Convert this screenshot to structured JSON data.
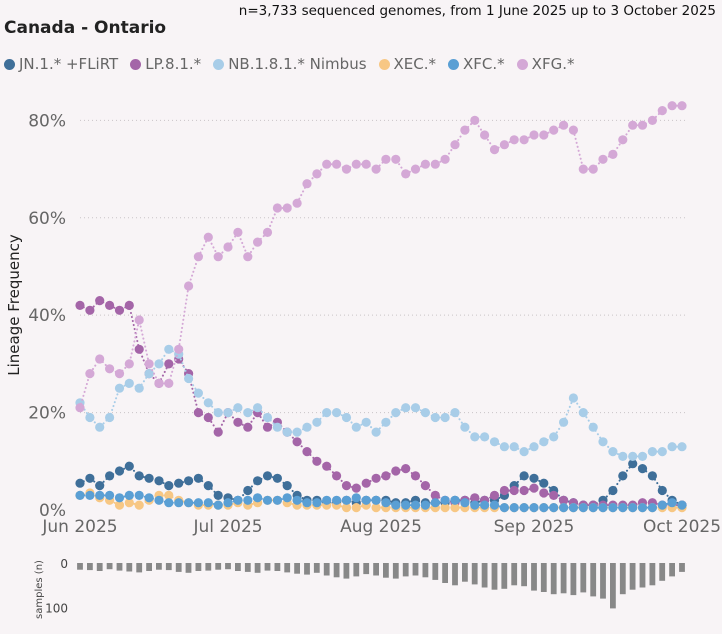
{
  "chart_data": [
    {
      "type": "line",
      "title": "Canada - Ontario",
      "subtitle": "n=3,733 sequenced genomes, from 1 June 2025 up to 3 October 2025",
      "xlabel": "",
      "ylabel": "Lineage Frequency",
      "ylim": [
        0,
        0.85
      ],
      "yticks": [
        0,
        0.2,
        0.4,
        0.6,
        0.8
      ],
      "ytick_labels": [
        "0%",
        "20%",
        "40%",
        "60%",
        "80%"
      ],
      "xticks": [
        0,
        30,
        61,
        92,
        122
      ],
      "xtick_labels": [
        "Jun 2025",
        "Jul 2025",
        "Aug 2025",
        "Sep 2025",
        "Oct 2025"
      ],
      "x_unit": "days since 2025-06-01",
      "series": [
        {
          "name": "JN.1.* +FLiRT",
          "color": "#3f6f99",
          "x": [
            0,
            2,
            4,
            6,
            8,
            10,
            12,
            14,
            16,
            18,
            20,
            22,
            24,
            26,
            28,
            30,
            32,
            34,
            36,
            38,
            40,
            42,
            44,
            46,
            48,
            50,
            52,
            54,
            56,
            58,
            60,
            62,
            64,
            66,
            68,
            70,
            72,
            74,
            76,
            78,
            80,
            82,
            84,
            86,
            88,
            90,
            92,
            94,
            96,
            98,
            100,
            102,
            104,
            106,
            108,
            110,
            112,
            114,
            116,
            118,
            120,
            122
          ],
          "y": [
            0.055,
            0.065,
            0.05,
            0.07,
            0.08,
            0.09,
            0.07,
            0.065,
            0.06,
            0.05,
            0.055,
            0.06,
            0.065,
            0.05,
            0.03,
            0.025,
            0.02,
            0.04,
            0.06,
            0.07,
            0.065,
            0.05,
            0.03,
            0.02,
            0.02,
            0.015,
            0.015,
            0.02,
            0.015,
            0.02,
            0.02,
            0.02,
            0.015,
            0.015,
            0.02,
            0.015,
            0.015,
            0.015,
            0.02,
            0.02,
            0.015,
            0.02,
            0.02,
            0.03,
            0.05,
            0.07,
            0.065,
            0.055,
            0.04,
            0.02,
            0.015,
            0.01,
            0.01,
            0.02,
            0.04,
            0.07,
            0.095,
            0.085,
            0.07,
            0.04,
            0.02,
            0.01
          ]
        },
        {
          "name": "LP.8.1.*",
          "color": "#a465a8",
          "x": [
            0,
            2,
            4,
            6,
            8,
            10,
            12,
            14,
            16,
            18,
            20,
            22,
            24,
            26,
            28,
            30,
            32,
            34,
            36,
            38,
            40,
            42,
            44,
            46,
            48,
            50,
            52,
            54,
            56,
            58,
            60,
            62,
            64,
            66,
            68,
            70,
            72,
            74,
            76,
            78,
            80,
            82,
            84,
            86,
            88,
            90,
            92,
            94,
            96,
            98,
            100,
            102,
            104,
            106,
            108,
            110,
            112,
            114,
            116,
            118,
            120,
            122
          ],
          "y": [
            0.42,
            0.41,
            0.43,
            0.42,
            0.41,
            0.42,
            0.33,
            0.28,
            0.26,
            0.3,
            0.31,
            0.28,
            0.2,
            0.19,
            0.16,
            0.2,
            0.18,
            0.17,
            0.2,
            0.17,
            0.18,
            0.16,
            0.14,
            0.12,
            0.1,
            0.09,
            0.07,
            0.05,
            0.045,
            0.055,
            0.065,
            0.07,
            0.08,
            0.085,
            0.07,
            0.05,
            0.03,
            0.02,
            0.015,
            0.02,
            0.025,
            0.02,
            0.03,
            0.04,
            0.04,
            0.04,
            0.045,
            0.035,
            0.03,
            0.02,
            0.015,
            0.01,
            0.01,
            0.01,
            0.01,
            0.01,
            0.01,
            0.015,
            0.015,
            0.01,
            0.01,
            0.01
          ]
        },
        {
          "name": "NB.1.8.1.* Nimbus",
          "color": "#a8cde8",
          "x": [
            0,
            2,
            4,
            6,
            8,
            10,
            12,
            14,
            16,
            18,
            20,
            22,
            24,
            26,
            28,
            30,
            32,
            34,
            36,
            38,
            40,
            42,
            44,
            46,
            48,
            50,
            52,
            54,
            56,
            58,
            60,
            62,
            64,
            66,
            68,
            70,
            72,
            74,
            76,
            78,
            80,
            82,
            84,
            86,
            88,
            90,
            92,
            94,
            96,
            98,
            100,
            102,
            104,
            106,
            108,
            110,
            112,
            114,
            116,
            118,
            120,
            122
          ],
          "y": [
            0.22,
            0.19,
            0.17,
            0.19,
            0.25,
            0.26,
            0.25,
            0.28,
            0.3,
            0.33,
            0.32,
            0.27,
            0.24,
            0.22,
            0.2,
            0.2,
            0.21,
            0.2,
            0.21,
            0.19,
            0.17,
            0.16,
            0.16,
            0.17,
            0.18,
            0.2,
            0.2,
            0.19,
            0.17,
            0.18,
            0.16,
            0.18,
            0.2,
            0.21,
            0.21,
            0.2,
            0.19,
            0.19,
            0.2,
            0.17,
            0.15,
            0.15,
            0.14,
            0.13,
            0.13,
            0.12,
            0.13,
            0.14,
            0.15,
            0.18,
            0.23,
            0.2,
            0.17,
            0.14,
            0.12,
            0.11,
            0.11,
            0.11,
            0.12,
            0.12,
            0.13,
            0.13
          ]
        },
        {
          "name": "XEC.*",
          "color": "#f7c784",
          "x": [
            0,
            2,
            4,
            6,
            8,
            10,
            12,
            14,
            16,
            18,
            20,
            22,
            24,
            26,
            28,
            30,
            32,
            34,
            36,
            38,
            40,
            42,
            44,
            46,
            48,
            50,
            52,
            54,
            56,
            58,
            60,
            62,
            64,
            66,
            68,
            70,
            72,
            74,
            76,
            78,
            80,
            82,
            84,
            86,
            88,
            90,
            92,
            94,
            96,
            98,
            100,
            102,
            104,
            106,
            108,
            110,
            112,
            114,
            116,
            118,
            120,
            122
          ],
          "y": [
            0.03,
            0.035,
            0.025,
            0.02,
            0.01,
            0.015,
            0.01,
            0.02,
            0.03,
            0.03,
            0.02,
            0.015,
            0.01,
            0.01,
            0.01,
            0.01,
            0.015,
            0.01,
            0.015,
            0.02,
            0.02,
            0.015,
            0.01,
            0.01,
            0.01,
            0.01,
            0.01,
            0.005,
            0.005,
            0.01,
            0.005,
            0.005,
            0.005,
            0.005,
            0.005,
            0.005,
            0.005,
            0.005,
            0.005,
            0.005,
            0.005,
            0.005,
            0.005,
            0.005,
            0.005,
            0.005,
            0.005,
            0.005,
            0.005,
            0.005,
            0.005,
            0.005,
            0.005,
            0.005,
            0.005,
            0.005,
            0.005,
            0.005,
            0.005,
            0.005,
            0.005,
            0.005
          ]
        },
        {
          "name": "XFC.*",
          "color": "#5a9fd4",
          "x": [
            0,
            2,
            4,
            6,
            8,
            10,
            12,
            14,
            16,
            18,
            20,
            22,
            24,
            26,
            28,
            30,
            32,
            34,
            36,
            38,
            40,
            42,
            44,
            46,
            48,
            50,
            52,
            54,
            56,
            58,
            60,
            62,
            64,
            66,
            68,
            70,
            72,
            74,
            76,
            78,
            80,
            82,
            84,
            86,
            88,
            90,
            92,
            94,
            96,
            98,
            100,
            102,
            104,
            106,
            108,
            110,
            112,
            114,
            116,
            118,
            120,
            122
          ],
          "y": [
            0.03,
            0.03,
            0.03,
            0.03,
            0.025,
            0.03,
            0.03,
            0.025,
            0.02,
            0.015,
            0.015,
            0.015,
            0.015,
            0.015,
            0.01,
            0.015,
            0.02,
            0.02,
            0.025,
            0.02,
            0.02,
            0.025,
            0.02,
            0.015,
            0.015,
            0.02,
            0.02,
            0.02,
            0.025,
            0.02,
            0.02,
            0.015,
            0.01,
            0.01,
            0.01,
            0.01,
            0.015,
            0.02,
            0.02,
            0.015,
            0.01,
            0.01,
            0.01,
            0.005,
            0.005,
            0.005,
            0.005,
            0.005,
            0.005,
            0.005,
            0.005,
            0.005,
            0.005,
            0.005,
            0.005,
            0.005,
            0.005,
            0.005,
            0.005,
            0.01,
            0.015,
            0.01
          ]
        },
        {
          "name": "XFG.*",
          "color": "#d4a8d6",
          "x": [
            0,
            2,
            4,
            6,
            8,
            10,
            12,
            14,
            16,
            18,
            20,
            22,
            24,
            26,
            28,
            30,
            32,
            34,
            36,
            38,
            40,
            42,
            44,
            46,
            48,
            50,
            52,
            54,
            56,
            58,
            60,
            62,
            64,
            66,
            68,
            70,
            72,
            74,
            76,
            78,
            80,
            82,
            84,
            86,
            88,
            90,
            92,
            94,
            96,
            98,
            100,
            102,
            104,
            106,
            108,
            110,
            112,
            114,
            116,
            118,
            120,
            122
          ],
          "y": [
            0.21,
            0.28,
            0.31,
            0.29,
            0.28,
            0.3,
            0.39,
            0.3,
            0.26,
            0.26,
            0.33,
            0.46,
            0.52,
            0.56,
            0.52,
            0.54,
            0.57,
            0.52,
            0.55,
            0.57,
            0.62,
            0.62,
            0.63,
            0.67,
            0.69,
            0.71,
            0.71,
            0.7,
            0.71,
            0.71,
            0.7,
            0.72,
            0.72,
            0.69,
            0.7,
            0.71,
            0.71,
            0.72,
            0.75,
            0.78,
            0.8,
            0.77,
            0.74,
            0.75,
            0.76,
            0.76,
            0.77,
            0.77,
            0.78,
            0.79,
            0.78,
            0.7,
            0.7,
            0.72,
            0.73,
            0.76,
            0.79,
            0.79,
            0.8,
            0.82,
            0.83,
            0.83
          ]
        }
      ]
    },
    {
      "type": "bar",
      "ylabel": "samples (n)",
      "ylim": [
        0,
        110
      ],
      "yticks": [
        0,
        100
      ],
      "ytick_labels": [
        "0",
        "100"
      ],
      "x": [
        0,
        2,
        4,
        6,
        8,
        10,
        12,
        14,
        16,
        18,
        20,
        22,
        24,
        26,
        28,
        30,
        32,
        34,
        36,
        38,
        40,
        42,
        44,
        46,
        48,
        50,
        52,
        54,
        56,
        58,
        60,
        62,
        64,
        66,
        68,
        70,
        72,
        74,
        76,
        78,
        80,
        82,
        84,
        86,
        88,
        90,
        92,
        94,
        96,
        98,
        100,
        102,
        104,
        106,
        108,
        110,
        112,
        114,
        116,
        118,
        120,
        122
      ],
      "values": [
        15,
        16,
        18,
        14,
        17,
        19,
        21,
        18,
        15,
        16,
        20,
        22,
        18,
        17,
        15,
        14,
        18,
        20,
        22,
        17,
        18,
        21,
        24,
        26,
        22,
        28,
        32,
        35,
        30,
        25,
        28,
        33,
        35,
        30,
        28,
        32,
        38,
        45,
        50,
        42,
        48,
        55,
        60,
        58,
        50,
        52,
        62,
        65,
        70,
        68,
        72,
        66,
        75,
        80,
        102,
        70,
        60,
        55,
        50,
        40,
        30,
        20
      ]
    }
  ]
}
